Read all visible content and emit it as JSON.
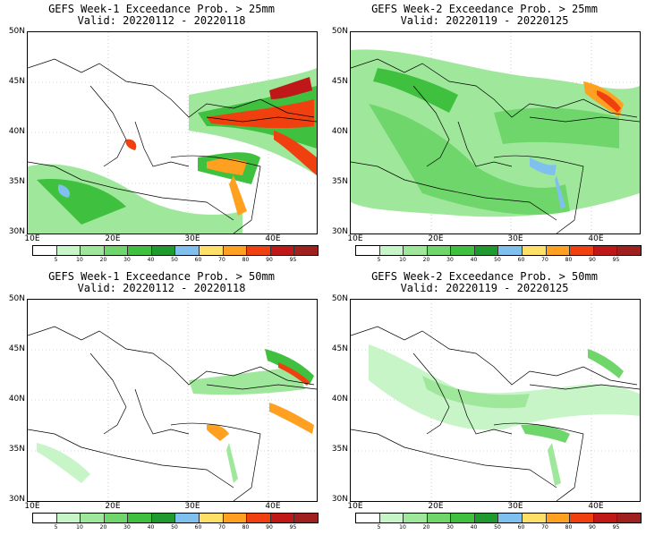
{
  "panels": [
    {
      "title": "GEFS Week-1 Exceedance Prob. > 25mm",
      "valid": "Valid: 20220112 - 20220118"
    },
    {
      "title": "GEFS Week-2 Exceedance Prob. > 25mm",
      "valid": "Valid: 20220119 - 20220125"
    },
    {
      "title": "GEFS Week-1 Exceedance Prob. > 50mm",
      "valid": "Valid: 20220112 - 20220118"
    },
    {
      "title": "GEFS Week-2 Exceedance Prob. > 50mm",
      "valid": "Valid: 20220119 - 20220125"
    }
  ],
  "axes": {
    "lat_labels": [
      "50N",
      "45N",
      "40N",
      "35N",
      "30N"
    ],
    "lon_labels": [
      "10E",
      "20E",
      "30E",
      "40E"
    ],
    "lat_range": [
      30,
      50
    ],
    "lon_range": [
      10,
      46
    ]
  },
  "colorbar": {
    "ticks": [
      "5",
      "10",
      "20",
      "30",
      "40",
      "50",
      "60",
      "70",
      "80",
      "90",
      "95"
    ],
    "colors": [
      "#ffffff",
      "#c8f5c8",
      "#9fe89b",
      "#6fd66b",
      "#3fc03f",
      "#1f9a2f",
      "#80c0ee",
      "#ffe066",
      "#ffa020",
      "#f04010",
      "#c01818",
      "#a02020"
    ]
  },
  "colors": {
    "coast": "#000000",
    "grid": "#aaaaaa"
  }
}
